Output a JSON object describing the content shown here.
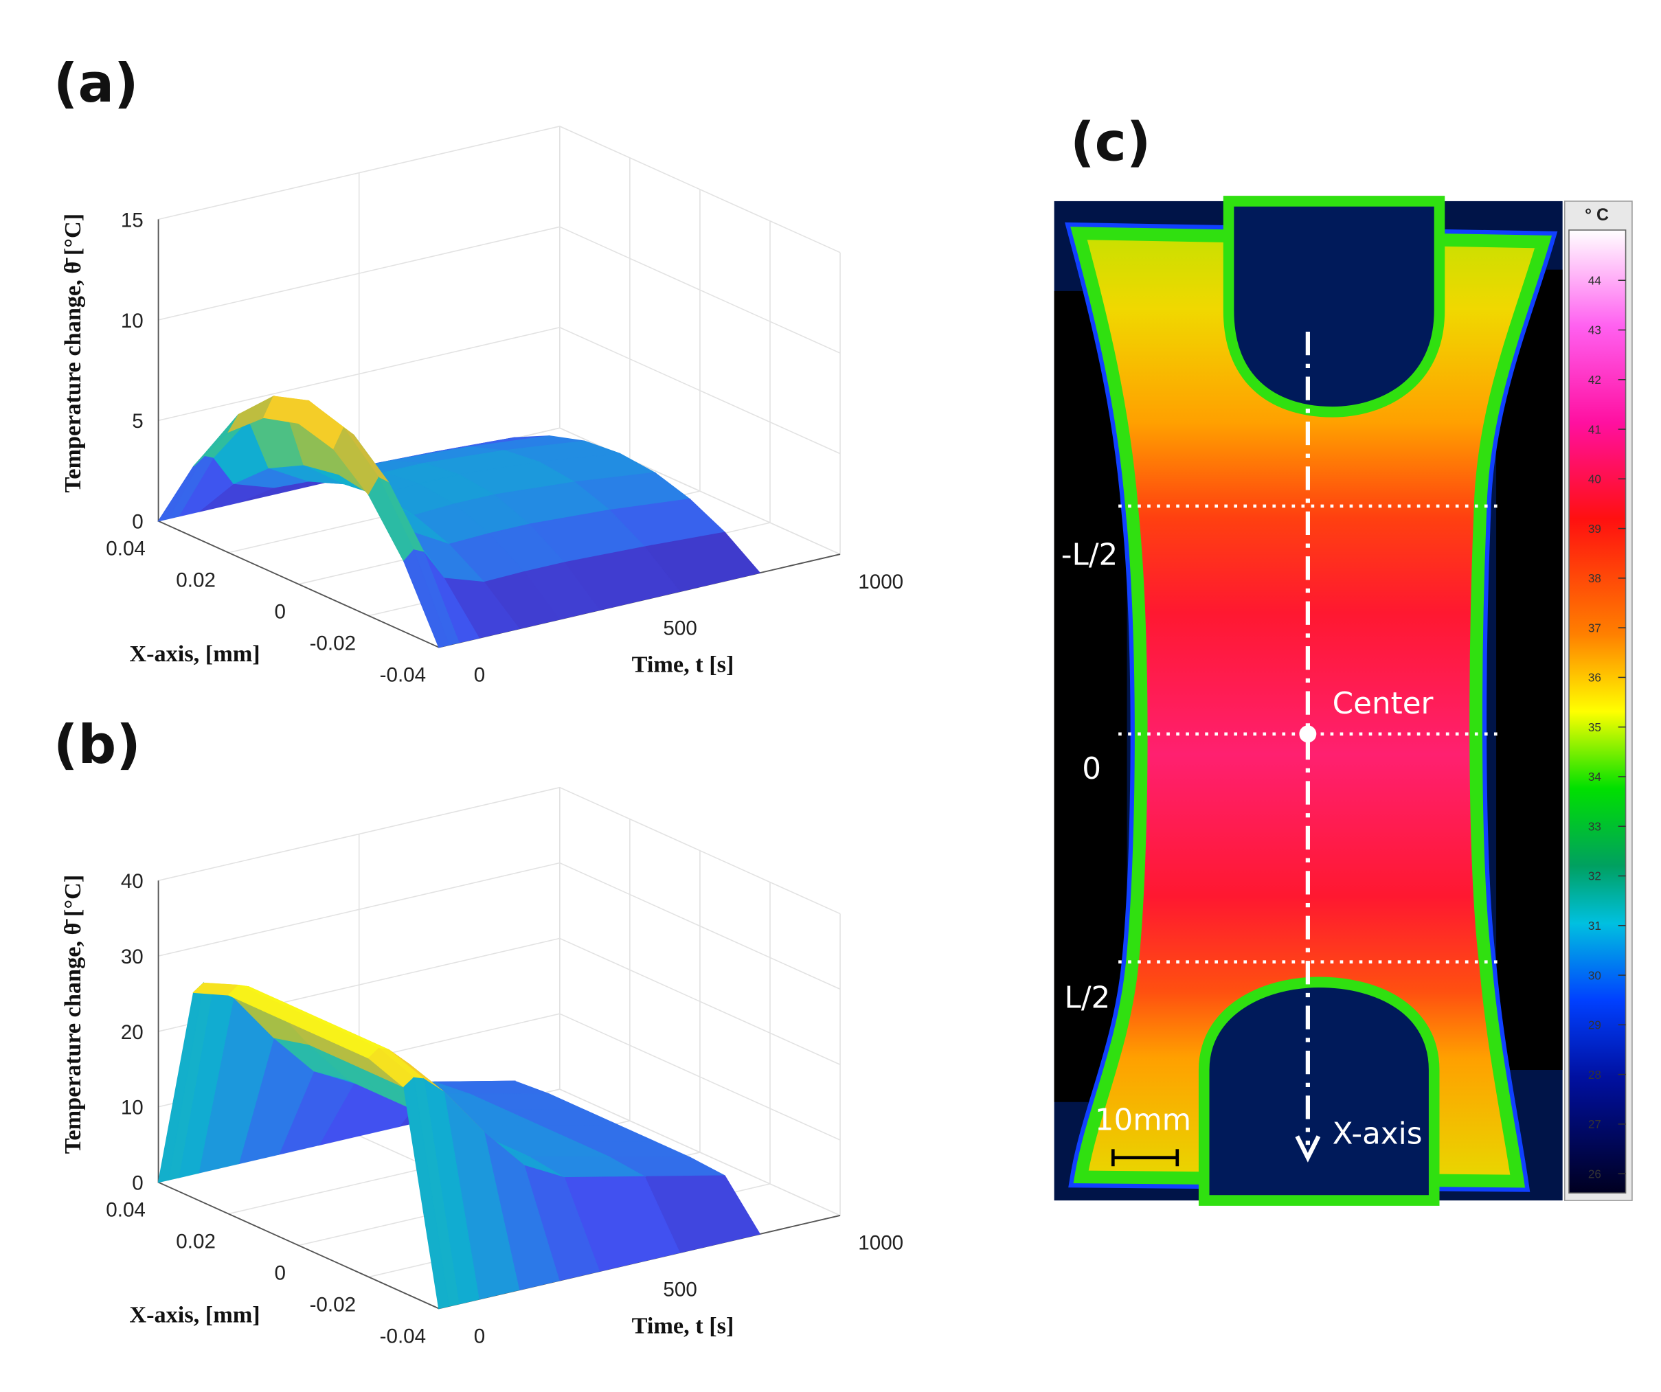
{
  "chart_data": [
    {
      "type": "surface",
      "panel_label": "(a)",
      "zlabel": "Temperature change, θ̄ [°C]",
      "xlabel": "X-axis, [mm]",
      "tlabel": "Time, t [s]",
      "x": [
        -0.04,
        -0.03,
        -0.02,
        -0.01,
        0,
        0.01,
        0.02,
        0.03,
        0.04
      ],
      "t": [
        0,
        25,
        50,
        100,
        200,
        300,
        400,
        600,
        800
      ],
      "values": [
        [
          0,
          3.5,
          6,
          7.5,
          8,
          7.5,
          6,
          3.5,
          0
        ],
        [
          0,
          3.94,
          6.75,
          8.44,
          9,
          8.44,
          6.75,
          3.94,
          0
        ],
        [
          0,
          3.72,
          6.38,
          7.97,
          8.5,
          7.97,
          6.38,
          3.72,
          0
        ],
        [
          0,
          2.19,
          3.75,
          4.69,
          5,
          4.69,
          3.75,
          2.19,
          0
        ],
        [
          0,
          1.53,
          2.63,
          3.28,
          3.5,
          3.28,
          2.63,
          1.53,
          0
        ],
        [
          0,
          1.58,
          2.7,
          3.38,
          3.6,
          3.38,
          2.7,
          1.58,
          0
        ],
        [
          0,
          1.58,
          2.7,
          3.38,
          3.6,
          3.38,
          2.7,
          1.58,
          0
        ],
        [
          0,
          1.44,
          2.48,
          3.09,
          3.3,
          3.09,
          2.48,
          1.44,
          0
        ],
        [
          0,
          1.23,
          2.1,
          2.63,
          2.8,
          2.63,
          2.1,
          1.23,
          0
        ]
      ],
      "xlim": [
        -0.04,
        0.04
      ],
      "tlim": [
        0,
        1000
      ],
      "zlim": [
        0,
        15
      ],
      "xticks": [
        -0.04,
        -0.02,
        0,
        0.02,
        0.04
      ],
      "tticks": [
        0,
        500,
        1000
      ],
      "zticks": [
        0,
        5,
        10,
        15
      ],
      "colormap": "parula",
      "grid": true
    },
    {
      "type": "surface",
      "panel_label": "(b)",
      "zlabel": "Temperature change, θ̄ [°C]",
      "xlabel": "X-axis, [mm]",
      "tlabel": "Time, t [s]",
      "x": [
        -0.04,
        -0.03,
        -0.02,
        -0.01,
        0,
        0.01,
        0.02,
        0.03,
        0.04
      ],
      "t": [
        0,
        25,
        50,
        100,
        200,
        300,
        400,
        600,
        800
      ],
      "values": [
        [
          0,
          27.26,
          29,
          29,
          29,
          29,
          29,
          27.26,
          0
        ],
        [
          0,
          28.2,
          30,
          30,
          30,
          30,
          30,
          28.2,
          0
        ],
        [
          0,
          27.73,
          29.5,
          29.5,
          29.5,
          29.5,
          29.5,
          27.73,
          0
        ],
        [
          0,
          25.38,
          27,
          27,
          27,
          27,
          27,
          25.38,
          0
        ],
        [
          0,
          18.8,
          20,
          20,
          20,
          20,
          20,
          18.8,
          0
        ],
        [
          0,
          13.16,
          14,
          14,
          14,
          14,
          14,
          13.16,
          0
        ],
        [
          0,
          10.34,
          11,
          11,
          11,
          11,
          11,
          10.34,
          0
        ],
        [
          0,
          7.99,
          8.5,
          8.5,
          8.5,
          8.5,
          8.5,
          7.99,
          0
        ],
        [
          0,
          5.64,
          6,
          6,
          6,
          6,
          6,
          5.64,
          0
        ]
      ],
      "xlim": [
        -0.04,
        0.04
      ],
      "tlim": [
        0,
        1000
      ],
      "zlim": [
        0,
        40
      ],
      "xticks": [
        -0.04,
        -0.02,
        0,
        0.02,
        0.04
      ],
      "tticks": [
        0,
        500,
        1000
      ],
      "zticks": [
        0,
        10,
        20,
        30,
        40
      ],
      "colormap": "parula",
      "grid": true
    }
  ],
  "image_c": {
    "panel_label": "(c)",
    "labels": {
      "minus_half": "-L/2",
      "zero": "0",
      "half": "L/2",
      "center": "Center",
      "scale": "10mm",
      "axis": "X-axis"
    },
    "colorbar": {
      "unit": "° C",
      "ticks": [
        44,
        43,
        42,
        41,
        40,
        39,
        38,
        37,
        36,
        35,
        34,
        33,
        32,
        31,
        30,
        29,
        28,
        27,
        26
      ]
    }
  }
}
